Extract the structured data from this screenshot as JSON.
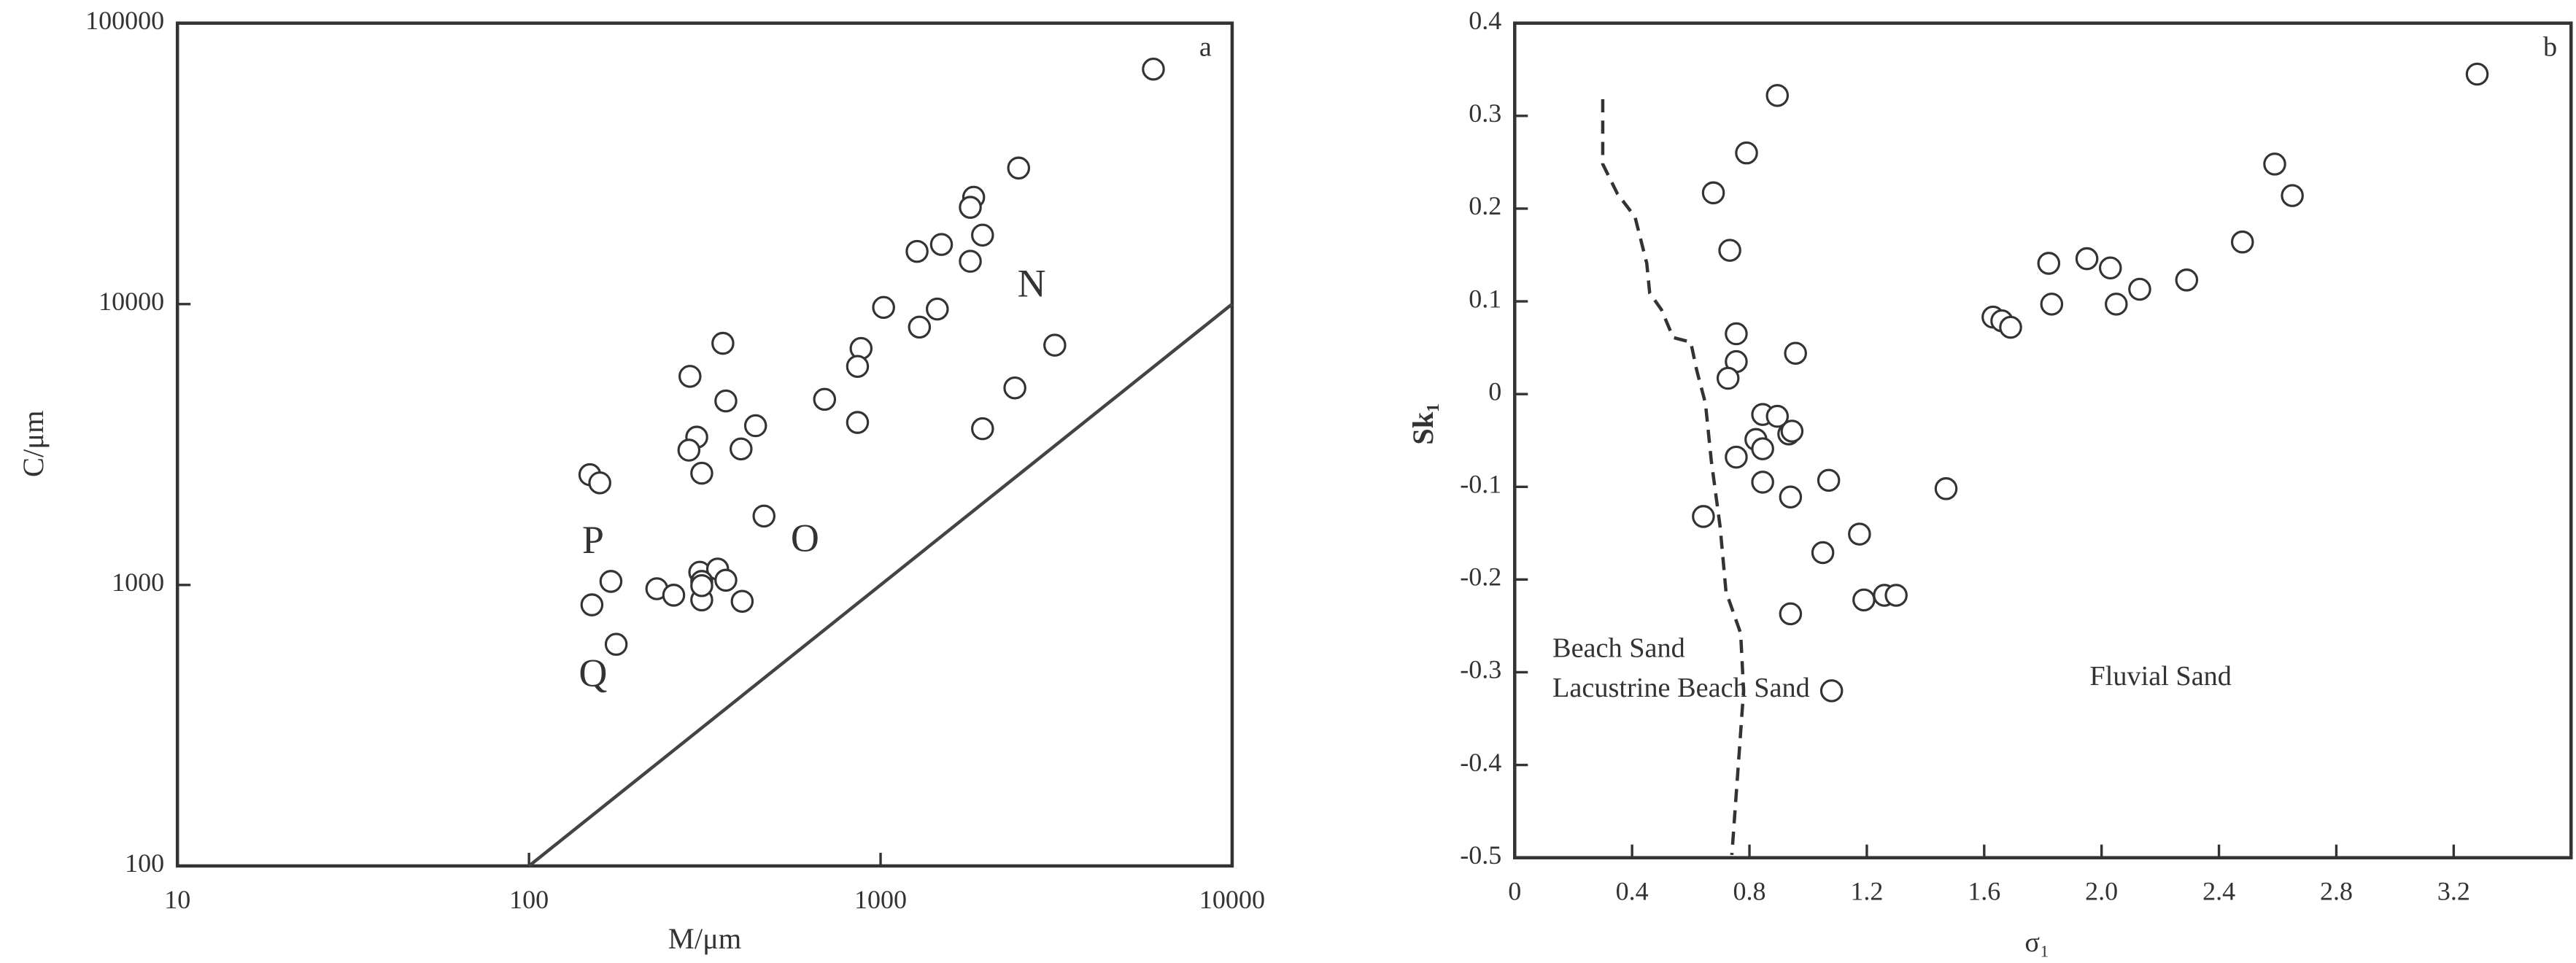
{
  "chart_data": [
    {
      "type": "scatter",
      "panel_label": "a",
      "x_label": "M/μm",
      "y_label": "C/μm",
      "log_x": true,
      "log_y": true,
      "xlim": [
        10,
        10000
      ],
      "ylim": [
        100,
        100000
      ],
      "xticks": [
        10,
        100,
        1000,
        10000
      ],
      "yticks": [
        100,
        1000,
        10000,
        100000
      ],
      "marker_color": "#333",
      "line_color": "#444",
      "annotations": [
        "P",
        "Q",
        "O",
        "N"
      ],
      "x": [
        5970,
        2470,
        1840,
        1800,
        1950,
        1490,
        1270,
        1800,
        1020,
        1450,
        880,
        860,
        1290,
        3130,
        356,
        287,
        363,
        693,
        2410,
        441,
        860,
        1950,
        300,
        285,
        401,
        310,
        149,
        159,
        466,
        306,
        344,
        310,
        363,
        171,
        231,
        258,
        310,
        404,
        310,
        151,
        177
      ],
      "values": [
        68600,
        30500,
        24000,
        22100,
        17600,
        16300,
        15400,
        14200,
        9730,
        9600,
        6950,
        6000,
        8280,
        7140,
        7250,
        5530,
        4520,
        4580,
        5030,
        3690,
        3790,
        3600,
        3360,
        3020,
        3050,
        2500,
        2470,
        2310,
        1760,
        1110,
        1140,
        1030,
        1040,
        1030,
        970,
        920,
        885,
        875,
        995,
        850,
        615
      ],
      "lines": [
        {
          "style": "solid",
          "x": [
            100,
            10000
          ],
          "values": [
            100,
            10000
          ]
        }
      ]
    },
    {
      "type": "scatter",
      "panel_label": "b",
      "x_label": "σ₁",
      "y_label": "Sk₁",
      "log_x": false,
      "log_y": false,
      "xlim": [
        0,
        3.6
      ],
      "ylim": [
        -0.5,
        0.4
      ],
      "xticks": [
        0,
        0.4,
        0.8,
        1.2,
        1.6,
        {
          "value": 2,
          "label": "2.0"
        },
        2.4,
        2.8,
        3.2
      ],
      "yticks": [
        -0.5,
        -0.4,
        -0.3,
        -0.2,
        -0.1,
        0,
        0.1,
        0.2,
        0.3,
        0.4
      ],
      "marker_color": "#333",
      "line_color": "#333",
      "annotations": [
        "Beach Sand",
        "Lacustrine Beach Sand",
        "Fluvial Sand"
      ],
      "x": [
        3.28,
        0.895,
        0.79,
        0.677,
        0.733,
        2.59,
        2.65,
        2.48,
        1.95,
        1.82,
        2.03,
        2.29,
        2.13,
        1.83,
        2.05,
        1.63,
        1.66,
        1.69,
        0.755,
        0.957,
        0.755,
        0.727,
        0.845,
        0.895,
        0.934,
        0.945,
        0.822,
        0.845,
        0.755,
        0.845,
        0.94,
        1.07,
        1.47,
        0.643,
        1.175,
        1.05,
        1.19,
        1.26,
        1.3,
        0.94,
        1.08
      ],
      "values": [
        0.345,
        0.322,
        0.26,
        0.217,
        0.155,
        0.248,
        0.214,
        0.164,
        0.146,
        0.141,
        0.136,
        0.123,
        0.113,
        0.097,
        0.097,
        0.083,
        0.079,
        0.072,
        0.065,
        0.044,
        0.035,
        0.017,
        -0.022,
        -0.024,
        -0.043,
        -0.04,
        -0.049,
        -0.059,
        -0.068,
        -0.095,
        -0.111,
        -0.093,
        -0.102,
        -0.132,
        -0.151,
        -0.171,
        -0.222,
        -0.217,
        -0.217,
        -0.237,
        -0.32
      ],
      "lines": [
        {
          "style": "dashed",
          "x": [
            0.3,
            0.3,
            0.35,
            0.41,
            0.45,
            0.46,
            0.5,
            0.54,
            0.6,
            0.62,
            0.65,
            0.67,
            0.7,
            0.72,
            0.77,
            0.78,
            0.76,
            0.74
          ],
          "values": [
            0.318,
            0.248,
            0.216,
            0.191,
            0.141,
            0.109,
            0.091,
            0.061,
            0.056,
            0.026,
            -0.01,
            -0.072,
            -0.143,
            -0.213,
            -0.258,
            -0.32,
            -0.409,
            -0.497
          ]
        }
      ]
    }
  ]
}
